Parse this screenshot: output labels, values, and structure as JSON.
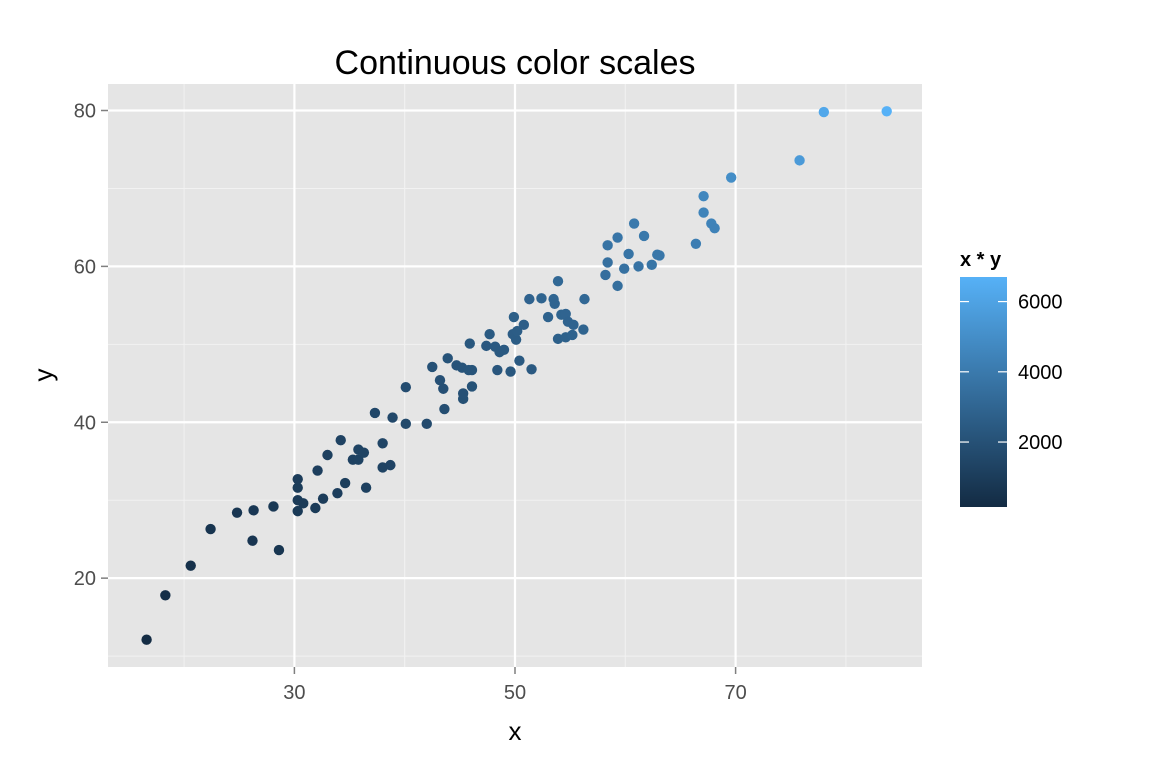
{
  "chart_data": {
    "type": "scatter",
    "title": "Continuous color scales",
    "xlabel": "x",
    "ylabel": "y",
    "xlim": [
      13.1,
      86.9
    ],
    "ylim": [
      8.6,
      83.4
    ],
    "x_ticks": [
      30,
      50,
      70
    ],
    "y_ticks": [
      20,
      40,
      60,
      80
    ],
    "x_minor_ticks": [
      20,
      40,
      60,
      80
    ],
    "y_minor_ticks": [
      10,
      30,
      50,
      70
    ],
    "grid": true,
    "panel_background": "#e5e5e5",
    "legend": {
      "title": "x * y",
      "position": "right",
      "range": [
        150,
        6700
      ],
      "ticks": [
        2000,
        4000,
        6000
      ],
      "low_color": "#132b43",
      "high_color": "#56b1f7"
    },
    "points": [
      {
        "x": 16.6,
        "y": 12.1
      },
      {
        "x": 18.3,
        "y": 17.8
      },
      {
        "x": 20.6,
        "y": 21.6
      },
      {
        "x": 22.4,
        "y": 26.3
      },
      {
        "x": 24.8,
        "y": 28.4
      },
      {
        "x": 26.2,
        "y": 24.8
      },
      {
        "x": 26.3,
        "y": 28.7
      },
      {
        "x": 28.1,
        "y": 29.2
      },
      {
        "x": 28.6,
        "y": 23.6
      },
      {
        "x": 30.3,
        "y": 28.6
      },
      {
        "x": 30.3,
        "y": 30.0
      },
      {
        "x": 30.3,
        "y": 31.6
      },
      {
        "x": 30.3,
        "y": 32.7
      },
      {
        "x": 30.8,
        "y": 29.6
      },
      {
        "x": 31.9,
        "y": 29.0
      },
      {
        "x": 32.1,
        "y": 33.8
      },
      {
        "x": 32.6,
        "y": 30.2
      },
      {
        "x": 33.0,
        "y": 35.8
      },
      {
        "x": 33.9,
        "y": 30.9
      },
      {
        "x": 34.2,
        "y": 37.7
      },
      {
        "x": 34.6,
        "y": 32.2
      },
      {
        "x": 35.3,
        "y": 35.2
      },
      {
        "x": 35.8,
        "y": 35.2
      },
      {
        "x": 35.8,
        "y": 36.5
      },
      {
        "x": 36.3,
        "y": 36.1
      },
      {
        "x": 36.5,
        "y": 31.6
      },
      {
        "x": 37.3,
        "y": 41.2
      },
      {
        "x": 38.0,
        "y": 37.3
      },
      {
        "x": 38.0,
        "y": 34.2
      },
      {
        "x": 38.7,
        "y": 34.5
      },
      {
        "x": 38.9,
        "y": 40.6
      },
      {
        "x": 40.1,
        "y": 39.8
      },
      {
        "x": 40.1,
        "y": 44.5
      },
      {
        "x": 42.0,
        "y": 39.8
      },
      {
        "x": 42.5,
        "y": 47.1
      },
      {
        "x": 43.2,
        "y": 45.4
      },
      {
        "x": 43.5,
        "y": 44.3
      },
      {
        "x": 43.6,
        "y": 41.7
      },
      {
        "x": 43.9,
        "y": 48.2
      },
      {
        "x": 44.7,
        "y": 47.3
      },
      {
        "x": 45.2,
        "y": 47.0
      },
      {
        "x": 45.3,
        "y": 43.0
      },
      {
        "x": 45.3,
        "y": 43.7
      },
      {
        "x": 45.8,
        "y": 46.7
      },
      {
        "x": 45.9,
        "y": 50.1
      },
      {
        "x": 46.1,
        "y": 46.7
      },
      {
        "x": 46.1,
        "y": 44.6
      },
      {
        "x": 47.4,
        "y": 49.8
      },
      {
        "x": 47.7,
        "y": 51.3
      },
      {
        "x": 48.2,
        "y": 49.7
      },
      {
        "x": 48.4,
        "y": 46.7
      },
      {
        "x": 48.6,
        "y": 49.0
      },
      {
        "x": 49.0,
        "y": 49.3
      },
      {
        "x": 49.6,
        "y": 46.5
      },
      {
        "x": 49.8,
        "y": 51.3
      },
      {
        "x": 49.9,
        "y": 53.5
      },
      {
        "x": 50.1,
        "y": 50.6
      },
      {
        "x": 50.2,
        "y": 51.7
      },
      {
        "x": 50.4,
        "y": 47.9
      },
      {
        "x": 50.8,
        "y": 52.5
      },
      {
        "x": 51.3,
        "y": 55.8
      },
      {
        "x": 51.5,
        "y": 46.8
      },
      {
        "x": 52.4,
        "y": 55.9
      },
      {
        "x": 53.0,
        "y": 53.5
      },
      {
        "x": 53.5,
        "y": 55.8
      },
      {
        "x": 53.6,
        "y": 55.2
      },
      {
        "x": 53.9,
        "y": 58.1
      },
      {
        "x": 53.9,
        "y": 50.7
      },
      {
        "x": 54.2,
        "y": 53.8
      },
      {
        "x": 54.6,
        "y": 53.9
      },
      {
        "x": 54.6,
        "y": 50.9
      },
      {
        "x": 54.8,
        "y": 52.9
      },
      {
        "x": 55.2,
        "y": 51.2
      },
      {
        "x": 55.3,
        "y": 52.5
      },
      {
        "x": 56.2,
        "y": 51.9
      },
      {
        "x": 56.3,
        "y": 55.8
      },
      {
        "x": 58.2,
        "y": 58.9
      },
      {
        "x": 58.4,
        "y": 62.7
      },
      {
        "x": 58.4,
        "y": 60.5
      },
      {
        "x": 59.3,
        "y": 57.5
      },
      {
        "x": 59.3,
        "y": 63.7
      },
      {
        "x": 59.9,
        "y": 59.7
      },
      {
        "x": 60.3,
        "y": 61.6
      },
      {
        "x": 60.8,
        "y": 65.5
      },
      {
        "x": 61.2,
        "y": 60.0
      },
      {
        "x": 61.7,
        "y": 63.9
      },
      {
        "x": 62.4,
        "y": 60.2
      },
      {
        "x": 62.9,
        "y": 61.5
      },
      {
        "x": 63.1,
        "y": 61.4
      },
      {
        "x": 66.4,
        "y": 62.9
      },
      {
        "x": 67.1,
        "y": 69.0
      },
      {
        "x": 67.1,
        "y": 66.9
      },
      {
        "x": 67.8,
        "y": 65.5
      },
      {
        "x": 68.1,
        "y": 64.9
      },
      {
        "x": 69.6,
        "y": 71.4
      },
      {
        "x": 75.8,
        "y": 73.6
      },
      {
        "x": 78.0,
        "y": 79.8
      },
      {
        "x": 83.7,
        "y": 79.9
      }
    ]
  }
}
